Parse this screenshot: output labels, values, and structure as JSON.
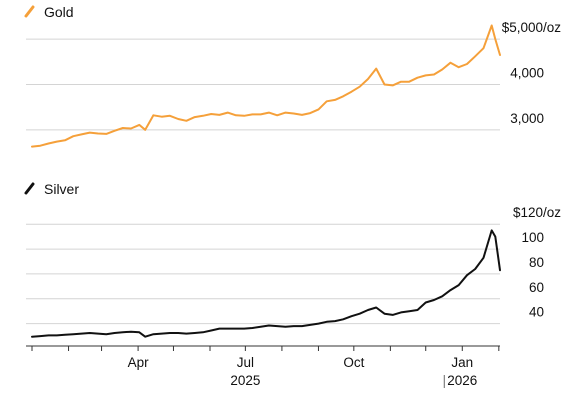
{
  "colors": {
    "gold": "#f5a03a",
    "silver": "#111111",
    "grid": "#d4d4d4"
  },
  "chart_data": [
    {
      "type": "line",
      "title": "",
      "legend": "Gold",
      "legend_position": "top-left",
      "legend_icon": "diagonal-line-icon",
      "ylim": [
        2600,
        5200
      ],
      "yticks": [
        3000,
        4000,
        5000
      ],
      "ytick_labels": [
        "3,000",
        "4,000",
        "$5,000/oz"
      ],
      "grid": true,
      "series": [
        {
          "name": "Gold",
          "color": "#f5a03a",
          "x": [
            "2025-01-01",
            "2025-01-08",
            "2025-01-15",
            "2025-01-22",
            "2025-01-29",
            "2025-02-05",
            "2025-02-12",
            "2025-02-19",
            "2025-02-26",
            "2025-03-05",
            "2025-03-12",
            "2025-03-19",
            "2025-03-26",
            "2025-04-02",
            "2025-04-07",
            "2025-04-14",
            "2025-04-21",
            "2025-04-28",
            "2025-05-05",
            "2025-05-12",
            "2025-05-19",
            "2025-05-26",
            "2025-06-02",
            "2025-06-09",
            "2025-06-16",
            "2025-06-23",
            "2025-06-30",
            "2025-07-07",
            "2025-07-14",
            "2025-07-21",
            "2025-07-28",
            "2025-08-04",
            "2025-08-11",
            "2025-08-18",
            "2025-08-25",
            "2025-09-01",
            "2025-09-08",
            "2025-09-15",
            "2025-09-22",
            "2025-09-29",
            "2025-10-06",
            "2025-10-13",
            "2025-10-20",
            "2025-10-27",
            "2025-11-03",
            "2025-11-10",
            "2025-11-17",
            "2025-11-24",
            "2025-12-01",
            "2025-12-08",
            "2025-12-15",
            "2025-12-22",
            "2025-12-29",
            "2026-01-05",
            "2026-01-12",
            "2026-01-19",
            "2026-01-26",
            "2026-01-29",
            "2026-02-02"
          ],
          "values": [
            2630,
            2650,
            2700,
            2740,
            2770,
            2860,
            2900,
            2940,
            2920,
            2910,
            2980,
            3040,
            3030,
            3110,
            3000,
            3320,
            3290,
            3310,
            3240,
            3200,
            3280,
            3310,
            3350,
            3330,
            3380,
            3320,
            3310,
            3340,
            3340,
            3380,
            3320,
            3380,
            3360,
            3330,
            3370,
            3450,
            3630,
            3660,
            3740,
            3840,
            3950,
            4120,
            4350,
            4000,
            3980,
            4060,
            4060,
            4150,
            4200,
            4220,
            4330,
            4480,
            4380,
            4450,
            4620,
            4800,
            5300,
            5000,
            4650
          ]
        }
      ]
    },
    {
      "type": "line",
      "title": "",
      "legend": "Silver",
      "legend_position": "top-left",
      "legend_icon": "diagonal-line-icon",
      "ylim": [
        22,
        125
      ],
      "yticks": [
        40,
        60,
        80,
        100,
        120
      ],
      "ytick_labels": [
        "40",
        "60",
        "80",
        "100",
        "$120/oz"
      ],
      "grid": true,
      "series": [
        {
          "name": "Silver",
          "color": "#111111",
          "x": [
            "2025-01-01",
            "2025-01-08",
            "2025-01-15",
            "2025-01-22",
            "2025-01-29",
            "2025-02-05",
            "2025-02-12",
            "2025-02-19",
            "2025-02-26",
            "2025-03-05",
            "2025-03-12",
            "2025-03-19",
            "2025-03-26",
            "2025-04-02",
            "2025-04-07",
            "2025-04-14",
            "2025-04-21",
            "2025-04-28",
            "2025-05-05",
            "2025-05-12",
            "2025-05-19",
            "2025-05-26",
            "2025-06-02",
            "2025-06-09",
            "2025-06-16",
            "2025-06-23",
            "2025-06-30",
            "2025-07-07",
            "2025-07-14",
            "2025-07-21",
            "2025-07-28",
            "2025-08-04",
            "2025-08-11",
            "2025-08-18",
            "2025-08-25",
            "2025-09-01",
            "2025-09-08",
            "2025-09-15",
            "2025-09-22",
            "2025-09-29",
            "2025-10-06",
            "2025-10-13",
            "2025-10-20",
            "2025-10-27",
            "2025-11-03",
            "2025-11-10",
            "2025-11-17",
            "2025-11-24",
            "2025-12-01",
            "2025-12-08",
            "2025-12-15",
            "2025-12-22",
            "2025-12-29",
            "2026-01-05",
            "2026-01-12",
            "2026-01-19",
            "2026-01-26",
            "2026-01-29",
            "2026-02-02"
          ],
          "values": [
            29.5,
            30,
            30.5,
            30.5,
            31,
            31.5,
            32,
            32.5,
            32,
            31.5,
            32.5,
            33,
            33.5,
            33,
            29.5,
            31.5,
            32,
            32.5,
            32.5,
            32,
            32.5,
            33,
            34.5,
            36,
            36,
            36,
            36,
            36.5,
            37.5,
            38.5,
            38,
            37.5,
            38,
            38,
            39,
            40,
            41.5,
            42,
            43.5,
            46,
            48,
            51,
            53,
            48,
            47,
            49,
            50,
            51,
            57,
            59,
            62,
            67,
            71,
            79,
            84,
            93,
            115,
            110,
            83
          ]
        }
      ]
    }
  ],
  "x_axis": {
    "month_ticks": [
      "2025-01-01",
      "2025-02-01",
      "2025-03-01",
      "2025-04-01",
      "2025-05-01",
      "2025-06-01",
      "2025-07-01",
      "2025-08-01",
      "2025-09-01",
      "2025-10-01",
      "2025-11-01",
      "2025-12-01",
      "2026-01-01",
      "2026-02-01"
    ],
    "labels": [
      {
        "date": "2025-04-01",
        "text": "Apr"
      },
      {
        "date": "2025-07-01",
        "text": "Jul"
      },
      {
        "date": "2025-10-01",
        "text": "Oct"
      },
      {
        "date": "2026-01-01",
        "text": "Jan"
      }
    ],
    "years": [
      {
        "date": "2025-07-01",
        "text": "2025"
      },
      {
        "date": "2026-01-01",
        "text": "2026"
      }
    ]
  }
}
